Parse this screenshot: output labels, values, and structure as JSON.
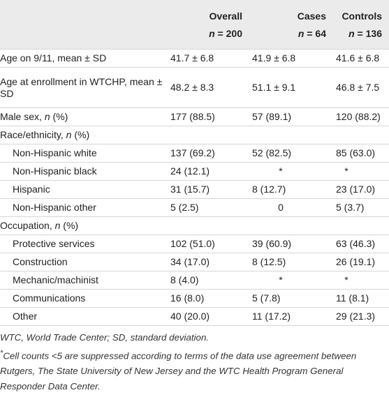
{
  "table": {
    "columns": [
      {
        "name": "Overall",
        "n": "n = 200"
      },
      {
        "name": "Cases",
        "n": "n = 64"
      },
      {
        "name": "Controls",
        "n": "n = 136"
      }
    ],
    "rows": [
      {
        "label": "Age on 9/11, mean ± SD",
        "cells": [
          "41.7 ± 6.8",
          "41.9 ± 6.8",
          "41.6 ± 6.8"
        ]
      },
      {
        "label": "Age at enrollment in WTCHP, mean ± SD",
        "cells": [
          "48.2 ± 8.3",
          "51.1 ± 9.1",
          "46.8 ± 7.5"
        ]
      },
      {
        "label": "Male sex, n (%)",
        "cells": [
          "177 (88.5)",
          "57 (89.1)",
          "120 (88.2)"
        ]
      },
      {
        "label": "Race/ethnicity, n (%)",
        "rows": [
          {
            "label": "Non-Hispanic white",
            "cells": [
              "137 (69.2)",
              "52 (82.5)",
              "85 (63.0)"
            ]
          },
          {
            "label": "Non-Hispanic black",
            "cells": [
              "24 (12.1)",
              "*",
              "*"
            ]
          },
          {
            "label": "Hispanic",
            "cells": [
              "31 (15.7)",
              "8 (12.7)",
              "23 (17.0)"
            ]
          },
          {
            "label": "Non-Hispanic other",
            "cells": [
              "5 (2.5)",
              "0",
              "5 (3.7)"
            ]
          }
        ]
      },
      {
        "label": "Occupation, n (%)",
        "rows": [
          {
            "label": "Protective services",
            "cells": [
              "102 (51.0)",
              "39 (60.9)",
              "63 (46.3)"
            ]
          },
          {
            "label": "Construction",
            "cells": [
              "34 (17.0)",
              "8 (12.5)",
              "26 (19.1)"
            ]
          },
          {
            "label": "Mechanic/machinist",
            "cells": [
              "8 (4.0)",
              "*",
              "*"
            ]
          },
          {
            "label": "Communications",
            "cells": [
              "16 (8.0)",
              "5 (7.8)",
              "11 (8.1)"
            ]
          },
          {
            "label": "Other",
            "cells": [
              "40 (20.0)",
              "11 (17.2)",
              "29 (21.3)"
            ]
          }
        ]
      }
    ],
    "footnotes": [
      "WTC, World Trade Center; SD, standard deviation.",
      "*Cell counts <5 are suppressed according to terms of the data use agreement between Rutgers, The State University of New Jersey and the WTC Health Program General Responder Data Center."
    ]
  }
}
